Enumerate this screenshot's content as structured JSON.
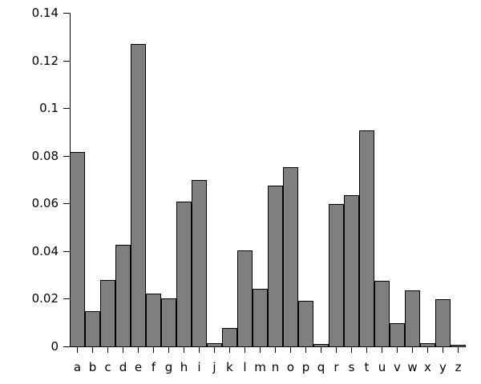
{
  "chart_data": {
    "type": "bar",
    "title": "",
    "xlabel": "",
    "ylabel": "",
    "categories": [
      "a",
      "b",
      "c",
      "d",
      "e",
      "f",
      "g",
      "h",
      "i",
      "j",
      "k",
      "l",
      "m",
      "n",
      "o",
      "p",
      "q",
      "r",
      "s",
      "t",
      "u",
      "v",
      "w",
      "x",
      "y",
      "z"
    ],
    "values": [
      0.0817,
      0.0149,
      0.0278,
      0.0425,
      0.127,
      0.0223,
      0.0202,
      0.0609,
      0.0697,
      0.0015,
      0.0077,
      0.0403,
      0.0241,
      0.0675,
      0.0751,
      0.0193,
      0.001,
      0.0599,
      0.0633,
      0.0906,
      0.0276,
      0.0098,
      0.0236,
      0.0015,
      0.0197,
      0.0007
    ],
    "ylim": [
      0,
      0.14
    ],
    "ytick_values": [
      0,
      0.02,
      0.04,
      0.06,
      0.08,
      0.1,
      0.12,
      0.14
    ],
    "ytick_labels": [
      "0",
      "0.02",
      "0.04",
      "0.06",
      "0.08",
      "0.1",
      "0.12",
      "0.14"
    ],
    "grid": false,
    "legend_position": "none",
    "bar_fill_color": "#7f7f7f",
    "bar_border_color": "#000000",
    "axis_color": "#000000",
    "text_color": "#000000",
    "background_color": "#ffffff"
  }
}
